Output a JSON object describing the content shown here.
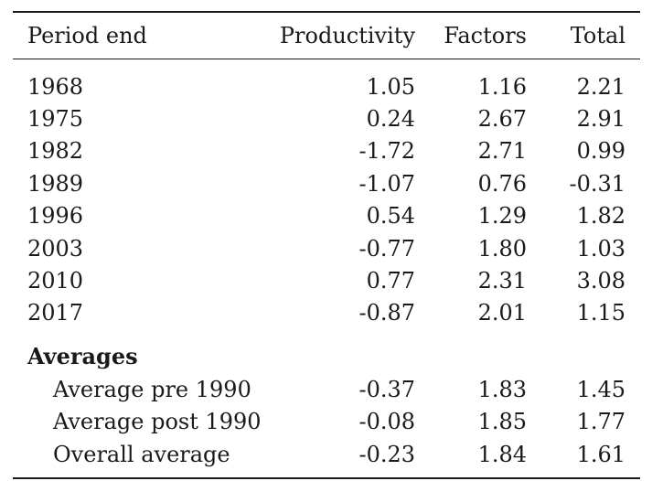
{
  "table": {
    "headers": [
      "Period end",
      "Productivity",
      "Factors",
      "Total"
    ],
    "rows": [
      [
        "1968",
        "1.05",
        "1.16",
        "2.21"
      ],
      [
        "1975",
        "0.24",
        "2.67",
        "2.91"
      ],
      [
        "1982",
        "-1.72",
        "2.71",
        "0.99"
      ],
      [
        "1989",
        "-1.07",
        "0.76",
        "-0.31"
      ],
      [
        "1996",
        "0.54",
        "1.29",
        "1.82"
      ],
      [
        "2003",
        "-0.77",
        "1.80",
        "1.03"
      ],
      [
        "2010",
        "0.77",
        "2.31",
        "3.08"
      ],
      [
        "2017",
        "-0.87",
        "2.01",
        "1.15"
      ]
    ],
    "section_label": "Averages",
    "averages": [
      [
        "Average pre 1990",
        "-0.37",
        "1.83",
        "1.45"
      ],
      [
        "Average post 1990",
        "-0.08",
        "1.85",
        "1.77"
      ],
      [
        "Overall average",
        "-0.23",
        "1.84",
        "1.61"
      ]
    ]
  }
}
